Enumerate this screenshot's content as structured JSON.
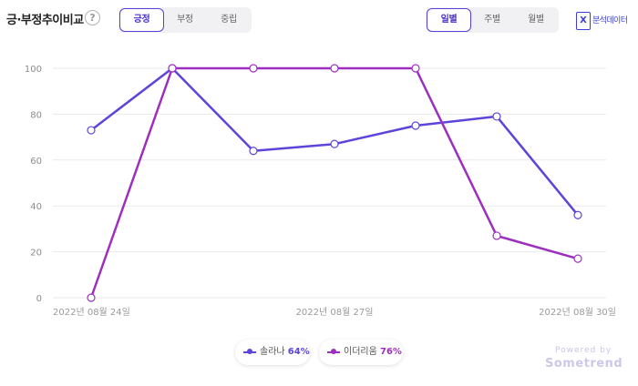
{
  "header": {
    "title": "긍·부정추이비교",
    "help_label": "?",
    "sentiment_tabs": [
      "긍정",
      "부정",
      "중립"
    ],
    "sentiment_active": 0,
    "period_tabs": [
      "일별",
      "주별",
      "월별"
    ],
    "period_active": 0,
    "excel_icon_label": "X",
    "export_label": "분석데이터"
  },
  "legend": [
    {
      "name": "솔라나",
      "pct": "64%"
    },
    {
      "name": "이더리움",
      "pct": "76%"
    }
  ],
  "branding": {
    "powered": "Powered by",
    "brand": "Sometrend"
  },
  "colors": {
    "series1": "#5b45db",
    "series2": "#9d2fbf",
    "grid": "#e9e9e9",
    "axis_text": "#8c8c8c"
  },
  "chart_data": {
    "type": "line",
    "x": [
      "2022-08-24",
      "2022-08-25",
      "2022-08-26",
      "2022-08-27",
      "2022-08-28",
      "2022-08-29",
      "2022-08-30"
    ],
    "xticks": [
      {
        "index": 0,
        "label": "2022년 08월 24일"
      },
      {
        "index": 3,
        "label": "2022년 08월 27일"
      },
      {
        "index": 6,
        "label": "2022년 08월 30일"
      }
    ],
    "yticks": [
      0,
      20,
      40,
      60,
      80,
      100
    ],
    "ylim": [
      0,
      100
    ],
    "grid": true,
    "legend_position": "bottom",
    "series": [
      {
        "name": "솔라나",
        "values": [
          73,
          100,
          64,
          67,
          75,
          79,
          36
        ]
      },
      {
        "name": "이더리움",
        "values": [
          0,
          100,
          100,
          100,
          100,
          27,
          17
        ]
      }
    ]
  }
}
